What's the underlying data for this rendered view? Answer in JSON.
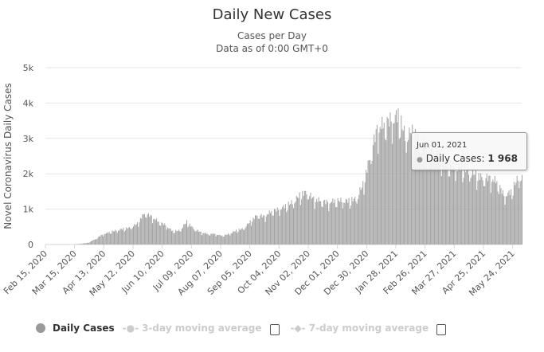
{
  "chart_data": {
    "type": "bar",
    "title": "Daily New Cases",
    "subtitle": [
      "Cases per Day",
      "Data as of 0:00 GMT+0"
    ],
    "ylabel": "Novel Coronavirus Daily Cases",
    "ylim": [
      0,
      5000
    ],
    "yticks": [
      "0",
      "1k",
      "2k",
      "3k",
      "4k",
      "5k"
    ],
    "start_date": "Feb 15, 2020",
    "end_date": "Jun 01, 2021",
    "xticks": [
      "Feb 15, 2020",
      "Mar 15, 2020",
      "Apr 13, 2020",
      "May 12, 2020",
      "Jun 10, 2020",
      "Jul 09, 2020",
      "Aug 07, 2020",
      "Sep 05, 2020",
      "Oct 04, 2020",
      "Nov 02, 2020",
      "Dec 01, 2020",
      "Dec 30, 2020",
      "Jan 28, 2021",
      "Feb 26, 2021",
      "Mar 27, 2021",
      "Apr 25, 2021",
      "May 24, 2021"
    ],
    "weekly_values": [
      0,
      0,
      0,
      0,
      0,
      20,
      50,
      150,
      280,
      350,
      400,
      450,
      480,
      600,
      900,
      800,
      650,
      550,
      380,
      400,
      650,
      450,
      350,
      300,
      300,
      250,
      300,
      400,
      450,
      650,
      850,
      800,
      950,
      1000,
      1100,
      1200,
      1400,
      1500,
      1300,
      1250,
      1200,
      1250,
      1250,
      1250,
      1300,
      1700,
      2500,
      3300,
      3450,
      3550,
      3700,
      3100,
      3200,
      3000,
      2800,
      2700,
      2500,
      2300,
      2200,
      2200,
      2100,
      2000,
      1900,
      1900,
      1800,
      1400,
      1500,
      1900,
      1968
    ],
    "series": [
      {
        "name": "Daily Cases",
        "color": "#999999"
      }
    ]
  },
  "tooltip": {
    "date": "Jun 01, 2021",
    "label": "Daily Cases: ",
    "value": "1 968"
  },
  "legend": [
    {
      "label": "Daily Cases",
      "color": "#999999"
    },
    {
      "label": "3-day moving average",
      "color": "#cccccc"
    },
    {
      "label": "7-day moving average",
      "color": "#cccccc"
    }
  ]
}
